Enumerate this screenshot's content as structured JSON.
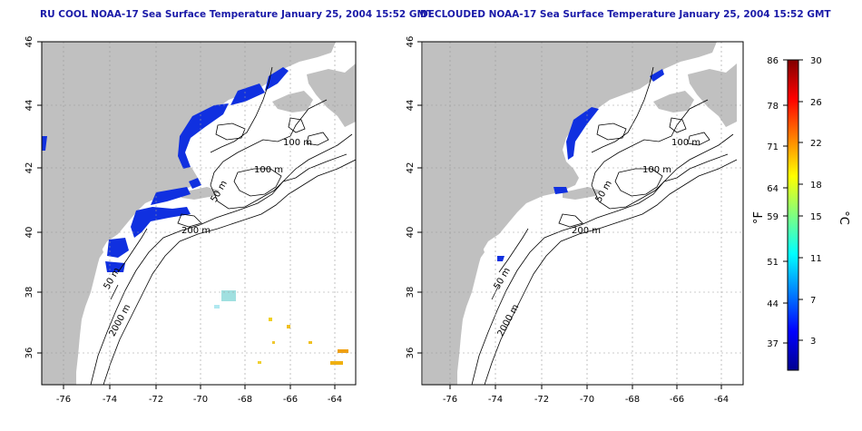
{
  "titles": {
    "left": "RU COOL NOAA-17 Sea Surface Temperature January 25, 2004 15:52 GMT",
    "right": "DECLOUDED NOAA-17 Sea Surface Temperature January 25, 2004 15:52 GMT"
  },
  "map": {
    "lon_range": [
      -77,
      -63
    ],
    "lat_range": [
      35,
      46
    ],
    "x_ticks": [
      "-76",
      "-74",
      "-72",
      "-70",
      "-68",
      "-66",
      "-64"
    ],
    "y_ticks": [
      "36",
      "38",
      "40",
      "42",
      "44",
      "46"
    ],
    "contour_labels": [
      "100 m",
      "100 m",
      "50 m",
      "200 m",
      "50 m",
      "2000 m"
    ],
    "land_color": "#c0c0c0",
    "grid": "dotted"
  },
  "colorbar": {
    "f_ticks": [
      "86",
      "78",
      "71",
      "64",
      "59",
      "51",
      "44",
      "37"
    ],
    "c_ticks": [
      "30",
      "26",
      "22",
      "18",
      "15",
      "11",
      "7",
      "3"
    ],
    "f_label": "°F",
    "c_label": "°C"
  }
}
